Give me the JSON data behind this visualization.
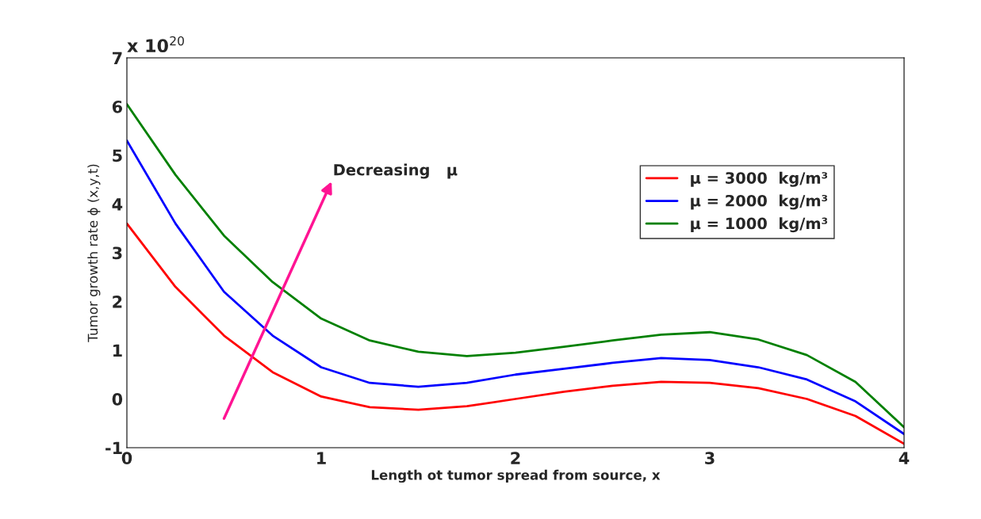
{
  "chart_data": {
    "type": "line",
    "xlabel": "Length ot tumor spread from source, x",
    "ylabel": "Tumor growth rate ϕ (x,y,t)",
    "x": [
      0,
      0.25,
      0.5,
      0.75,
      1,
      1.25,
      1.5,
      1.75,
      2,
      2.25,
      2.5,
      2.75,
      3,
      3.25,
      3.5,
      3.75,
      4
    ],
    "series": [
      {
        "name": "μ = 3000  kg/m³",
        "color": "#ff0000",
        "values": [
          3.6,
          2.3,
          1.3,
          0.55,
          0.05,
          -0.17,
          -0.22,
          -0.15,
          0.0,
          0.15,
          0.27,
          0.35,
          0.33,
          0.22,
          0.0,
          -0.35,
          -0.92
        ]
      },
      {
        "name": "μ = 2000  kg/m³",
        "color": "#0000ff",
        "values": [
          5.3,
          3.6,
          2.2,
          1.3,
          0.65,
          0.33,
          0.25,
          0.33,
          0.5,
          0.62,
          0.74,
          0.84,
          0.8,
          0.65,
          0.4,
          -0.05,
          -0.72
        ]
      },
      {
        "name": "μ = 1000  kg/m³",
        "color": "#008000",
        "values": [
          6.05,
          4.6,
          3.35,
          2.4,
          1.65,
          1.2,
          0.97,
          0.88,
          0.95,
          1.07,
          1.2,
          1.32,
          1.37,
          1.22,
          0.9,
          0.35,
          -0.58
        ]
      }
    ],
    "xlim": [
      0,
      4
    ],
    "xticks": [
      0,
      1,
      2,
      3,
      4
    ],
    "ylim": [
      -1,
      7
    ],
    "yticks": [
      -1,
      0,
      1,
      2,
      3,
      4,
      5,
      6,
      7
    ],
    "annotations": [
      "x 10$^{20}$",
      "Decreasing   μ"
    ],
    "legend": "right",
    "grid": false,
    "line_style": "solid",
    "marker": "none"
  }
}
